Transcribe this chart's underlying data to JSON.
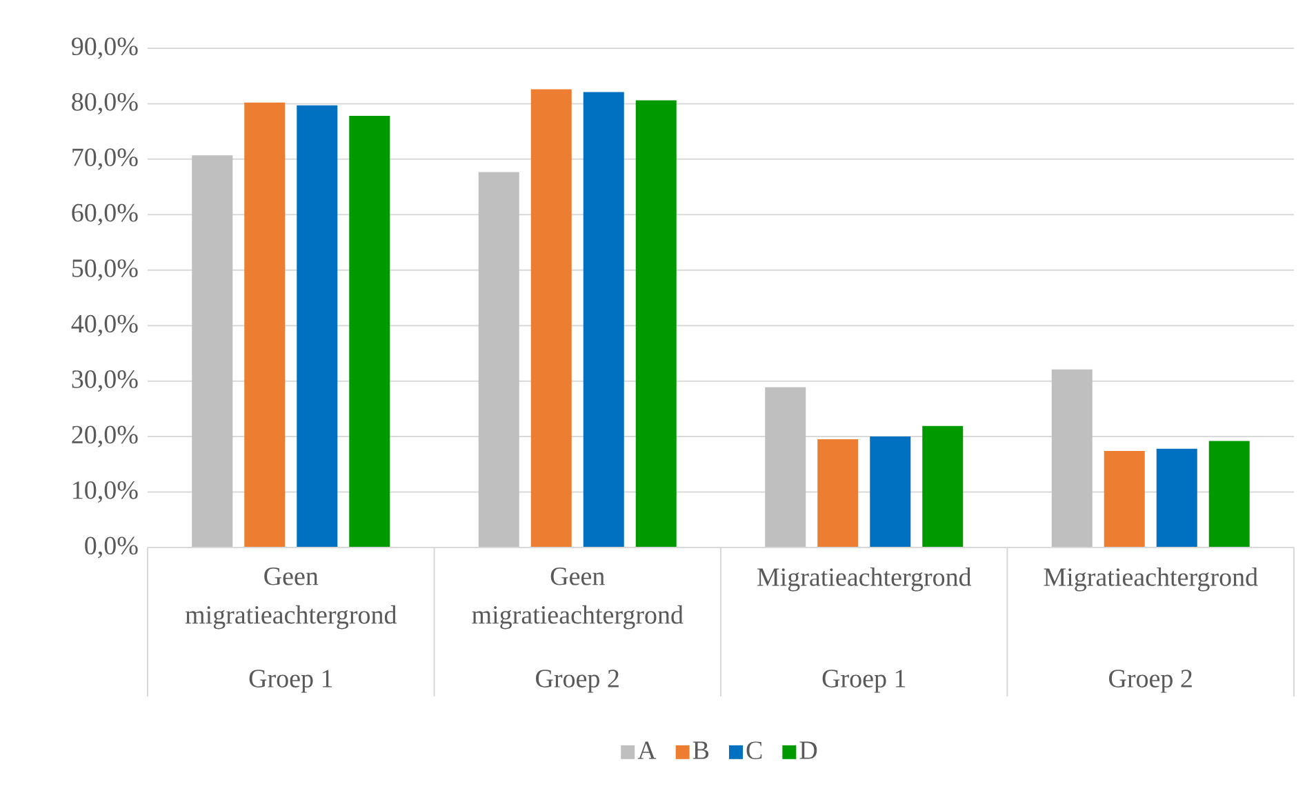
{
  "chart_data": {
    "type": "bar",
    "categories": [
      "Geen migratieachtergrond",
      "Geen migratieachtergrond",
      "Migratieachtergrond",
      "Migratieachtergrond"
    ],
    "annotations": [
      "Groep 1",
      "Groep 2",
      "Groep 1",
      "Groep 2"
    ],
    "series": [
      {
        "name": "A",
        "color": "#bfbfbf",
        "values": [
          70.7,
          67.7,
          28.9,
          32.1
        ]
      },
      {
        "name": "B",
        "color": "#ed7d31",
        "values": [
          80.2,
          82.6,
          19.5,
          17.4
        ]
      },
      {
        "name": "C",
        "color": "#0070c0",
        "values": [
          79.7,
          82.1,
          20.0,
          17.8
        ]
      },
      {
        "name": "D",
        "color": "#009900",
        "values": [
          77.8,
          80.6,
          21.9,
          19.2
        ]
      }
    ],
    "ylim": [
      0,
      90
    ],
    "yticks": [
      {
        "value": 0,
        "label": "0,0%"
      },
      {
        "value": 10,
        "label": "10,0%"
      },
      {
        "value": 20,
        "label": "20,0%"
      },
      {
        "value": 30,
        "label": "30,0%"
      },
      {
        "value": 40,
        "label": "40,0%"
      },
      {
        "value": 50,
        "label": "50,0%"
      },
      {
        "value": 60,
        "label": "60,0%"
      },
      {
        "value": 70,
        "label": "70,0%"
      },
      {
        "value": 80,
        "label": "80,0%"
      },
      {
        "value": 90,
        "label": "90,0%"
      }
    ],
    "grid": "y",
    "legend": "bottom"
  }
}
